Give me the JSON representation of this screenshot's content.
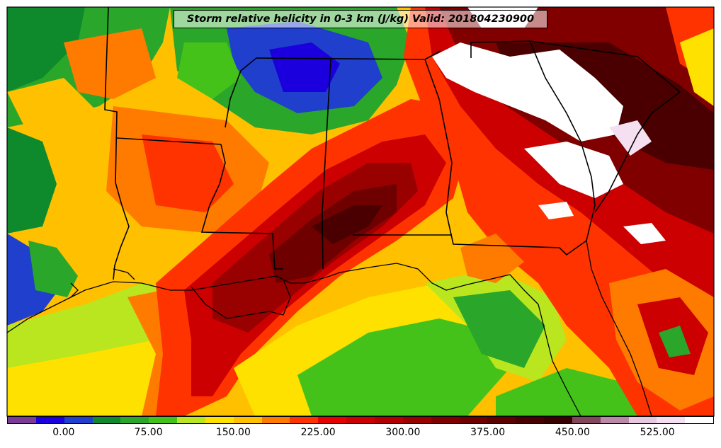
{
  "map": {
    "title": "Storm relative helicity in 0-3 km (J/kg) Valid: 201804230900"
  },
  "colorbar": {
    "colors": [
      "#7d3b98",
      "#1b00dd",
      "#1f3fcc",
      "#0e8a2c",
      "#2aa62a",
      "#44c21a",
      "#b9e61e",
      "#ffe100",
      "#ffc000",
      "#ff7b00",
      "#ff3300",
      "#e60000",
      "#cc0000",
      "#b20000",
      "#990000",
      "#800000",
      "#6e0000",
      "#5c0000",
      "#4a0000",
      "#3a0000",
      "#80485a",
      "#b88aa8",
      "#e6c8e0",
      "#f4e0f0",
      "#ffffff"
    ],
    "ticks": [
      "0.00",
      "75.00",
      "150.00",
      "225.00",
      "300.00",
      "375.00",
      "450.00",
      "525.00"
    ]
  }
}
